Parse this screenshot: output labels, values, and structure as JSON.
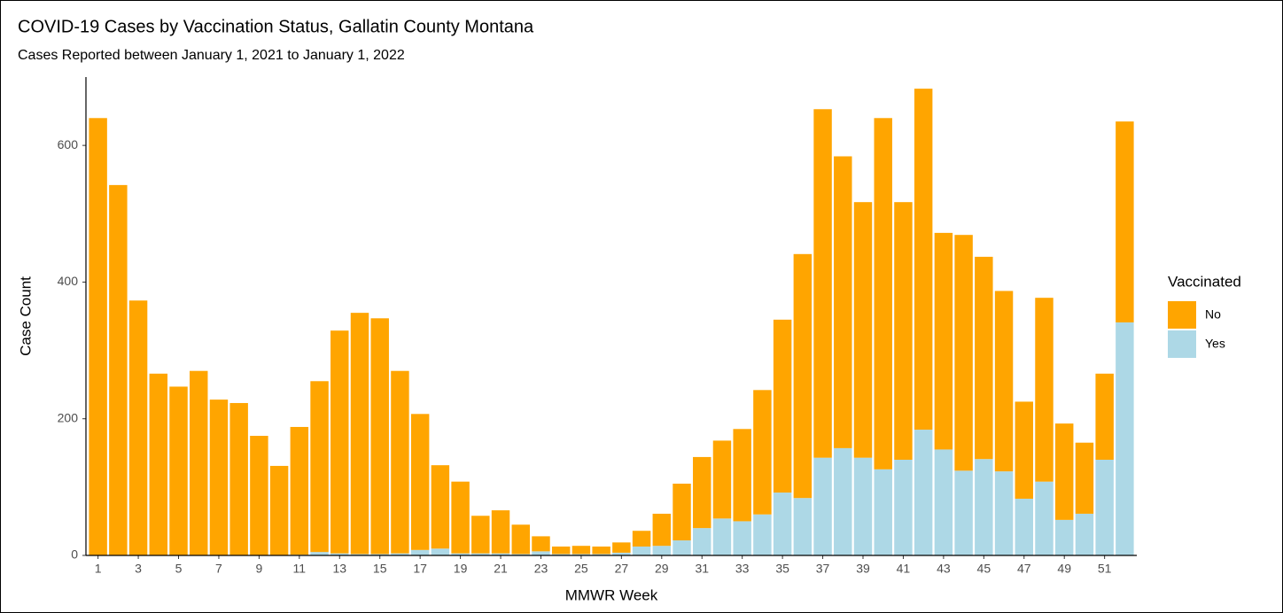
{
  "chart_data": {
    "type": "bar",
    "stacked": true,
    "title": "COVID-19 Cases by Vaccination Status, Gallatin County Montana",
    "subtitle": "Cases Reported between January 1, 2021 to January 1, 2022",
    "x_label": "MMWR Week",
    "y_label": "Case Count",
    "legend_title": "Vaccinated",
    "categories": [
      1,
      null,
      3,
      null,
      5,
      null,
      7,
      null,
      9,
      null,
      11,
      null,
      13,
      null,
      15,
      null,
      17,
      null,
      19,
      null,
      21,
      null,
      23,
      null,
      25,
      null,
      27,
      null,
      29,
      null,
      31,
      null,
      33,
      null,
      35,
      null,
      37,
      null,
      39,
      null,
      41,
      null,
      43,
      null,
      45,
      null,
      47,
      null,
      49,
      null,
      51,
      null
    ],
    "series": [
      {
        "name": "No",
        "color": "#ffa500",
        "values": [
          640,
          542,
          373,
          266,
          247,
          270,
          228,
          223,
          175,
          131,
          187,
          250,
          326,
          353,
          345,
          267,
          199,
          122,
          105,
          55,
          63,
          43,
          22,
          11,
          12,
          11,
          15,
          23,
          47,
          83,
          104,
          114,
          135,
          182,
          253,
          357,
          510,
          427,
          374,
          514,
          377,
          499,
          317,
          345,
          296,
          264,
          142,
          269,
          141,
          104,
          126,
          294
        ]
      },
      {
        "name": "Yes",
        "color": "#add8e6",
        "values": [
          0,
          0,
          0,
          0,
          0,
          0,
          0,
          0,
          0,
          0,
          1,
          5,
          3,
          2,
          2,
          3,
          8,
          10,
          3,
          3,
          3,
          2,
          6,
          2,
          2,
          2,
          4,
          13,
          14,
          22,
          40,
          54,
          50,
          60,
          92,
          84,
          143,
          157,
          143,
          126,
          140,
          184,
          155,
          124,
          141,
          123,
          83,
          108,
          52,
          61,
          140,
          341
        ]
      }
    ],
    "ylim": [
      0,
      700
    ],
    "yticks": [
      0,
      200,
      400,
      600
    ],
    "grid": false,
    "legend_position": "right"
  }
}
